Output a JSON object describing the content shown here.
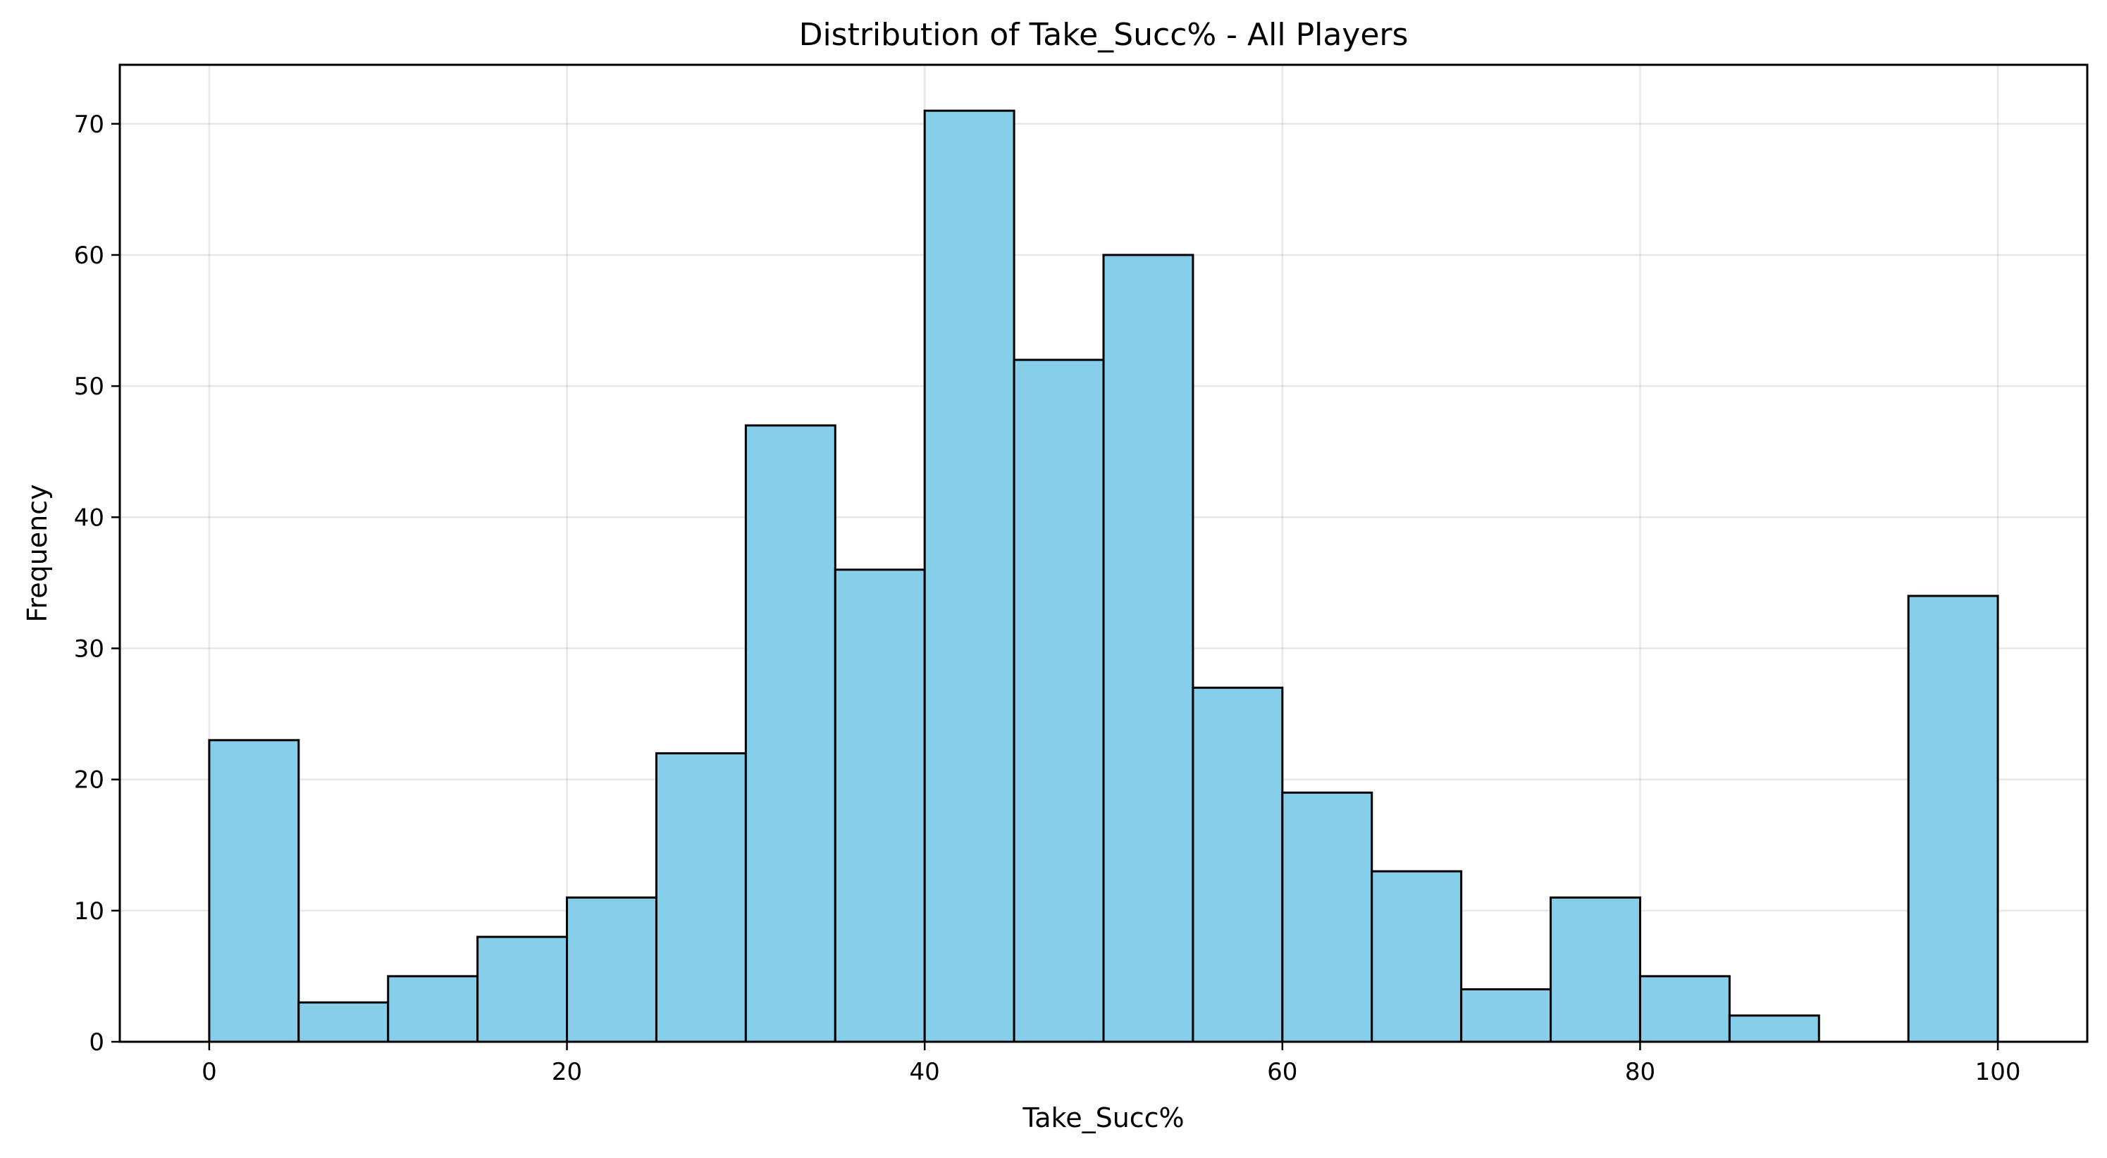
{
  "chart_data": {
    "type": "bar",
    "title": "Distribution of Take_Succ% - All Players",
    "xlabel": "Take_Succ%",
    "ylabel": "Frequency",
    "bin_edges": [
      0,
      5,
      10,
      15,
      20,
      25,
      30,
      35,
      40,
      45,
      50,
      55,
      60,
      65,
      70,
      75,
      80,
      85,
      90,
      95,
      100
    ],
    "values": [
      23,
      3,
      5,
      8,
      11,
      22,
      47,
      36,
      71,
      52,
      60,
      27,
      19,
      13,
      4,
      11,
      5,
      2,
      0,
      34
    ],
    "xlim": [
      -5,
      105
    ],
    "ylim": [
      0,
      74.5
    ],
    "xticks": [
      0,
      20,
      40,
      60,
      80,
      100
    ],
    "yticks": [
      0,
      10,
      20,
      30,
      40,
      50,
      60,
      70
    ],
    "grid": true,
    "colors": {
      "bar_fill": "#87CEEB",
      "bar_edge": "#000000"
    }
  }
}
